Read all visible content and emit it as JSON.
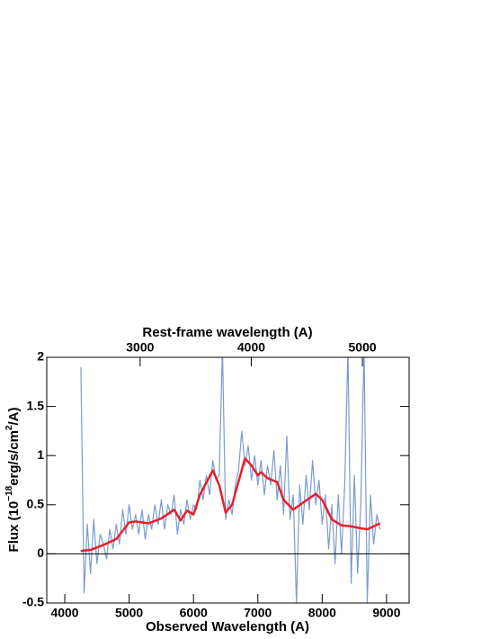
{
  "chart_data": {
    "type": "line",
    "xlabel": "Observed Wavelength (A)",
    "x2label": "Rest-frame wavelength (A)",
    "ylabel_parts": [
      "Flux (10",
      "−18",
      "erg/s/cm",
      "2",
      "/A)"
    ],
    "xlim": [
      3720,
      9350
    ],
    "xticks": [
      4000,
      5000,
      6000,
      7000,
      8000,
      9000
    ],
    "x2lim": [
      2160,
      5420
    ],
    "x2ticks": [
      3000,
      4000,
      5000
    ],
    "ylim": [
      -0.5,
      2
    ],
    "yticks": [
      -0.5,
      0,
      0.5,
      1,
      1.5,
      2
    ],
    "series": [
      {
        "color": "#7b9bd1",
        "width": 1.2,
        "x": [
          4250,
          4300,
          4350,
          4400,
          4450,
          4500,
          4550,
          4600,
          4650,
          4700,
          4750,
          4800,
          4850,
          4900,
          4950,
          5000,
          5050,
          5100,
          5150,
          5200,
          5250,
          5300,
          5350,
          5400,
          5450,
          5500,
          5550,
          5600,
          5650,
          5700,
          5750,
          5800,
          5850,
          5900,
          5950,
          6000,
          6050,
          6100,
          6150,
          6200,
          6250,
          6300,
          6350,
          6400,
          6450,
          6500,
          6550,
          6600,
          6650,
          6700,
          6750,
          6800,
          6850,
          6900,
          6950,
          7000,
          7050,
          7100,
          7150,
          7200,
          7250,
          7300,
          7350,
          7400,
          7450,
          7500,
          7550,
          7600,
          7650,
          7700,
          7750,
          7800,
          7850,
          7900,
          7950,
          8000,
          8050,
          8100,
          8150,
          8200,
          8250,
          8300,
          8350,
          8400,
          8450,
          8500,
          8550,
          8600,
          8650,
          8700,
          8750,
          8800,
          8850,
          8900
        ],
        "values": [
          1.9,
          -0.4,
          0.3,
          -0.2,
          0.35,
          -0.1,
          0.2,
          0.1,
          -0.05,
          0.25,
          0.05,
          0.3,
          0.1,
          0.45,
          0.2,
          0.5,
          0.25,
          0.4,
          0.2,
          0.45,
          0.15,
          0.4,
          0.25,
          0.5,
          0.3,
          0.55,
          0.25,
          0.5,
          0.4,
          0.6,
          0.2,
          0.45,
          0.3,
          0.55,
          0.35,
          0.5,
          0.45,
          0.75,
          0.55,
          0.8,
          0.6,
          0.95,
          0.75,
          0.8,
          2.1,
          0.35,
          0.55,
          0.4,
          0.7,
          0.85,
          1.25,
          0.9,
          1.1,
          0.75,
          1.0,
          0.7,
          0.95,
          0.6,
          0.9,
          0.7,
          1.05,
          0.55,
          0.9,
          0.4,
          1.2,
          0.35,
          0.6,
          -0.5,
          0.7,
          0.3,
          0.8,
          0.45,
          0.95,
          0.5,
          0.75,
          0.3,
          0.6,
          0.05,
          0.5,
          -0.1,
          0.6,
          0.0,
          0.7,
          2.1,
          -0.3,
          0.8,
          -0.2,
          0.5,
          2.1,
          -0.5,
          0.6,
          0.1,
          0.4,
          0.25
        ]
      },
      {
        "color": "#e8202a",
        "width": 2.5,
        "x": [
          4250,
          4400,
          4600,
          4800,
          5000,
          5100,
          5300,
          5500,
          5700,
          5800,
          5900,
          6000,
          6100,
          6300,
          6400,
          6500,
          6600,
          6800,
          6900,
          7000,
          7050,
          7150,
          7300,
          7400,
          7550,
          7700,
          7900,
          8000,
          8150,
          8300,
          8450,
          8600,
          8700,
          8900
        ],
        "values": [
          0.03,
          0.04,
          0.09,
          0.15,
          0.32,
          0.33,
          0.31,
          0.36,
          0.45,
          0.34,
          0.44,
          0.4,
          0.6,
          0.85,
          0.7,
          0.42,
          0.5,
          0.97,
          0.9,
          0.8,
          0.83,
          0.77,
          0.73,
          0.55,
          0.45,
          0.52,
          0.61,
          0.55,
          0.35,
          0.29,
          0.28,
          0.26,
          0.25,
          0.31
        ]
      }
    ]
  }
}
